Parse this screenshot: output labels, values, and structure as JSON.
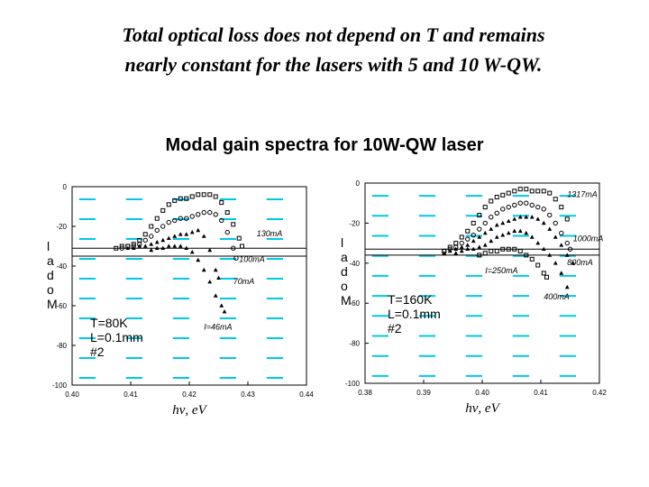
{
  "slide": {
    "title_line1": "Total optical loss does not depend  on T and remains",
    "title_line2": "nearly constant for the lasers with 5 and 10 W-QW.",
    "subtitle": "Modal gain spectra for 10W-QW laser"
  },
  "colors": {
    "grid_dash": "#00c8e6",
    "markers": "#000000",
    "axis": "#000000"
  },
  "chart_data": [
    {
      "type": "scatter",
      "xlabel": "hν, eV",
      "ylabel": "Modal",
      "xlim": [
        0.4,
        0.44
      ],
      "ylim": [
        -100,
        0
      ],
      "xticks": [
        "0.40",
        "0.41",
        "0.42",
        "0.43",
        "0.44"
      ],
      "yticks": [
        "0",
        "-20",
        "-40",
        "-60",
        "-80",
        "-100"
      ],
      "params": [
        "T=80K",
        "L=0.1mm",
        "#2"
      ],
      "loss_band": [
        -31,
        -35
      ],
      "grid": "dashed cyan",
      "series": [
        {
          "name": "130mA",
          "marker": "square",
          "x": [
            0.4075,
            0.4085,
            0.4095,
            0.4105,
            0.4115,
            0.4125,
            0.4135,
            0.4145,
            0.4155,
            0.4165,
            0.4175,
            0.4185,
            0.4195,
            0.4205,
            0.4215,
            0.4225,
            0.4235,
            0.4245,
            0.4255,
            0.4265,
            0.4275,
            0.4285,
            0.429
          ],
          "y": [
            -31,
            -30,
            -30,
            -29,
            -27,
            -24,
            -20,
            -16,
            -12,
            -9,
            -7,
            -6,
            -6,
            -5,
            -4,
            -4,
            -4,
            -5,
            -8,
            -13,
            -19,
            -26,
            -30
          ]
        },
        {
          "name": "100mA",
          "marker": "circle",
          "x": [
            0.4085,
            0.4095,
            0.4105,
            0.4115,
            0.4125,
            0.4135,
            0.4145,
            0.4155,
            0.4165,
            0.4175,
            0.4185,
            0.4195,
            0.4205,
            0.4215,
            0.4225,
            0.4235,
            0.4245,
            0.4255,
            0.4265,
            0.4275,
            0.428
          ],
          "y": [
            -31,
            -30,
            -30,
            -29,
            -27,
            -25,
            -22,
            -20,
            -18,
            -17,
            -16,
            -16,
            -15,
            -14,
            -13,
            -13,
            -14,
            -17,
            -23,
            -31,
            -36
          ]
        },
        {
          "name": "70mA",
          "marker": "triangle",
          "x": [
            0.4095,
            0.4105,
            0.4115,
            0.4125,
            0.4135,
            0.4145,
            0.4155,
            0.4165,
            0.4175,
            0.4185,
            0.4195,
            0.4205,
            0.4215,
            0.4225,
            0.4235,
            0.4245,
            0.425
          ],
          "y": [
            -31,
            -31,
            -30,
            -30,
            -29,
            -28,
            -27,
            -26,
            -25,
            -24,
            -24,
            -23,
            -22,
            -25,
            -32,
            -42,
            -46
          ]
        },
        {
          "name": "I=46mA",
          "marker": "triangle",
          "x": [
            0.4135,
            0.4145,
            0.4155,
            0.4165,
            0.4175,
            0.4185,
            0.4195,
            0.4205,
            0.4215,
            0.4225,
            0.4235,
            0.4245,
            0.4255,
            0.426
          ],
          "y": [
            -32,
            -31,
            -31,
            -30,
            -30,
            -30,
            -31,
            -33,
            -37,
            -42,
            -48,
            -55,
            -60,
            -63
          ]
        }
      ],
      "labels": [
        {
          "text": "130mA",
          "x": 0.4315,
          "y": -25
        },
        {
          "text": "100mA",
          "x": 0.4285,
          "y": -38
        },
        {
          "text": "70mA",
          "x": 0.4275,
          "y": -49
        },
        {
          "text": "I=46mA",
          "x": 0.4225,
          "y": -72
        }
      ]
    },
    {
      "type": "scatter",
      "xlabel": "hν, eV",
      "ylabel": "Modal",
      "xlim": [
        0.38,
        0.42
      ],
      "ylim": [
        -100,
        0
      ],
      "xticks": [
        "0.38",
        "0.39",
        "0.40",
        "0.41",
        "0.42"
      ],
      "yticks": [
        "0",
        "-20",
        "-40",
        "-60",
        "-80",
        "-100"
      ],
      "params": [
        "T=160K",
        "L=0.1mm",
        "#2"
      ],
      "loss_band": [
        -33,
        -36
      ],
      "grid": "dashed cyan",
      "series": [
        {
          "name": "1317mA",
          "marker": "square",
          "x": [
            0.3935,
            0.3945,
            0.3955,
            0.3965,
            0.3975,
            0.3985,
            0.3995,
            0.4005,
            0.4015,
            0.4025,
            0.4035,
            0.4045,
            0.4055,
            0.4065,
            0.4075,
            0.4085,
            0.4095,
            0.4105,
            0.4115,
            0.4125,
            0.4135,
            0.4145
          ],
          "y": [
            -34,
            -32,
            -30,
            -27,
            -24,
            -20,
            -16,
            -12,
            -9,
            -7,
            -6,
            -5,
            -4,
            -3,
            -3,
            -4,
            -4,
            -4,
            -5,
            -8,
            -12,
            -18
          ]
        },
        {
          "name": "1000mA",
          "marker": "circle",
          "x": [
            0.3935,
            0.3945,
            0.3955,
            0.3965,
            0.3975,
            0.3985,
            0.3995,
            0.4005,
            0.4015,
            0.4025,
            0.4035,
            0.4045,
            0.4055,
            0.4065,
            0.4075,
            0.4085,
            0.4095,
            0.4105,
            0.4115,
            0.4125,
            0.4135,
            0.4145,
            0.415
          ],
          "y": [
            -34,
            -33,
            -32,
            -30,
            -28,
            -26,
            -23,
            -20,
            -17,
            -15,
            -13,
            -12,
            -11,
            -10,
            -10,
            -11,
            -12,
            -13,
            -16,
            -20,
            -25,
            -30,
            -33
          ]
        },
        {
          "name": "800mA",
          "marker": "triangle",
          "x": [
            0.3935,
            0.3945,
            0.3955,
            0.3965,
            0.3975,
            0.3985,
            0.3995,
            0.4005,
            0.4015,
            0.4025,
            0.4035,
            0.4045,
            0.4055,
            0.4065,
            0.4075,
            0.4085,
            0.4095,
            0.4105,
            0.4115,
            0.4125,
            0.4135,
            0.4145,
            0.4155
          ],
          "y": [
            -35,
            -34,
            -33,
            -32,
            -31,
            -29,
            -27,
            -25,
            -23,
            -21,
            -20,
            -19,
            -18,
            -17,
            -17,
            -17,
            -18,
            -20,
            -23,
            -27,
            -31,
            -36,
            -40
          ]
        },
        {
          "name": "400mA",
          "marker": "triangle",
          "x": [
            0.3955,
            0.3965,
            0.3975,
            0.3985,
            0.3995,
            0.4005,
            0.4015,
            0.4025,
            0.4035,
            0.4045,
            0.4055,
            0.4065,
            0.4075,
            0.4085,
            0.4095,
            0.4105,
            0.4115,
            0.4125,
            0.4135,
            0.4145
          ],
          "y": [
            -35,
            -34,
            -33,
            -33,
            -32,
            -31,
            -29,
            -27,
            -26,
            -25,
            -24,
            -24,
            -25,
            -27,
            -30,
            -33,
            -36,
            -40,
            -45,
            -52
          ]
        },
        {
          "name": "I=250mA",
          "marker": "square",
          "x": [
            0.3995,
            0.4005,
            0.4015,
            0.4025,
            0.4035,
            0.4045,
            0.4055,
            0.4065,
            0.4075,
            0.4085,
            0.4095,
            0.4105,
            0.411
          ],
          "y": [
            -36,
            -35,
            -34,
            -34,
            -33,
            -33,
            -33,
            -34,
            -36,
            -38,
            -41,
            -45,
            -47
          ]
        }
      ],
      "labels": [
        {
          "text": "1317mA",
          "x": 0.4145,
          "y": -7
        },
        {
          "text": "1000mA",
          "x": 0.4155,
          "y": -29
        },
        {
          "text": "800mA",
          "x": 0.4145,
          "y": -41
        },
        {
          "text": "I=250mA",
          "x": 0.4005,
          "y": -45
        },
        {
          "text": "400mA",
          "x": 0.4105,
          "y": -58
        }
      ]
    }
  ]
}
